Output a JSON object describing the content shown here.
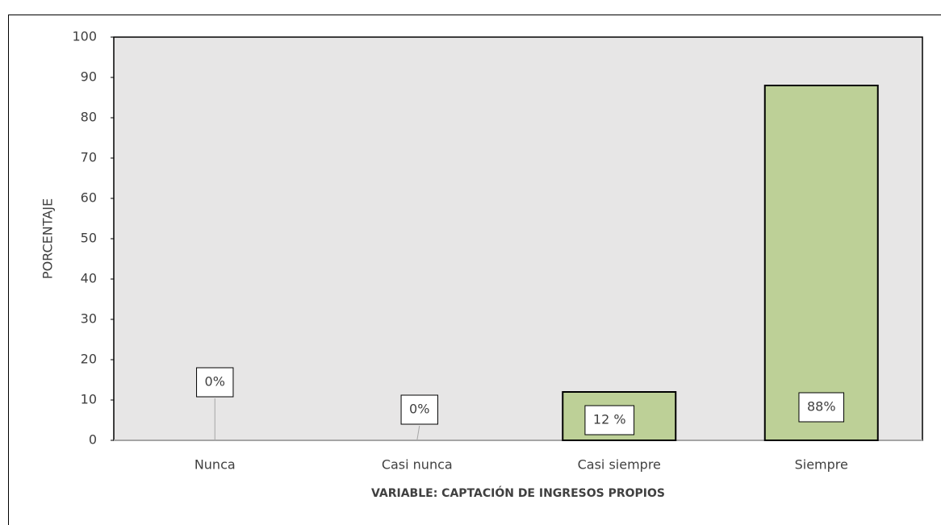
{
  "chart_data": {
    "type": "bar",
    "categories": [
      "Nunca",
      "Casi nunca",
      "Casi siempre",
      "Siempre"
    ],
    "values": [
      0,
      0,
      12,
      88
    ],
    "value_labels": [
      "0%",
      "0%",
      "12 %",
      "88%"
    ],
    "color": "#bdd097",
    "ylim": [
      0,
      100
    ],
    "yticks": [
      0,
      10,
      20,
      30,
      40,
      50,
      60,
      70,
      80,
      90,
      100
    ],
    "ylabel": "PORCENTAJE",
    "xlabel": "VARIABLE: CAPTACIÓN DE INGRESOS PROPIOS"
  }
}
